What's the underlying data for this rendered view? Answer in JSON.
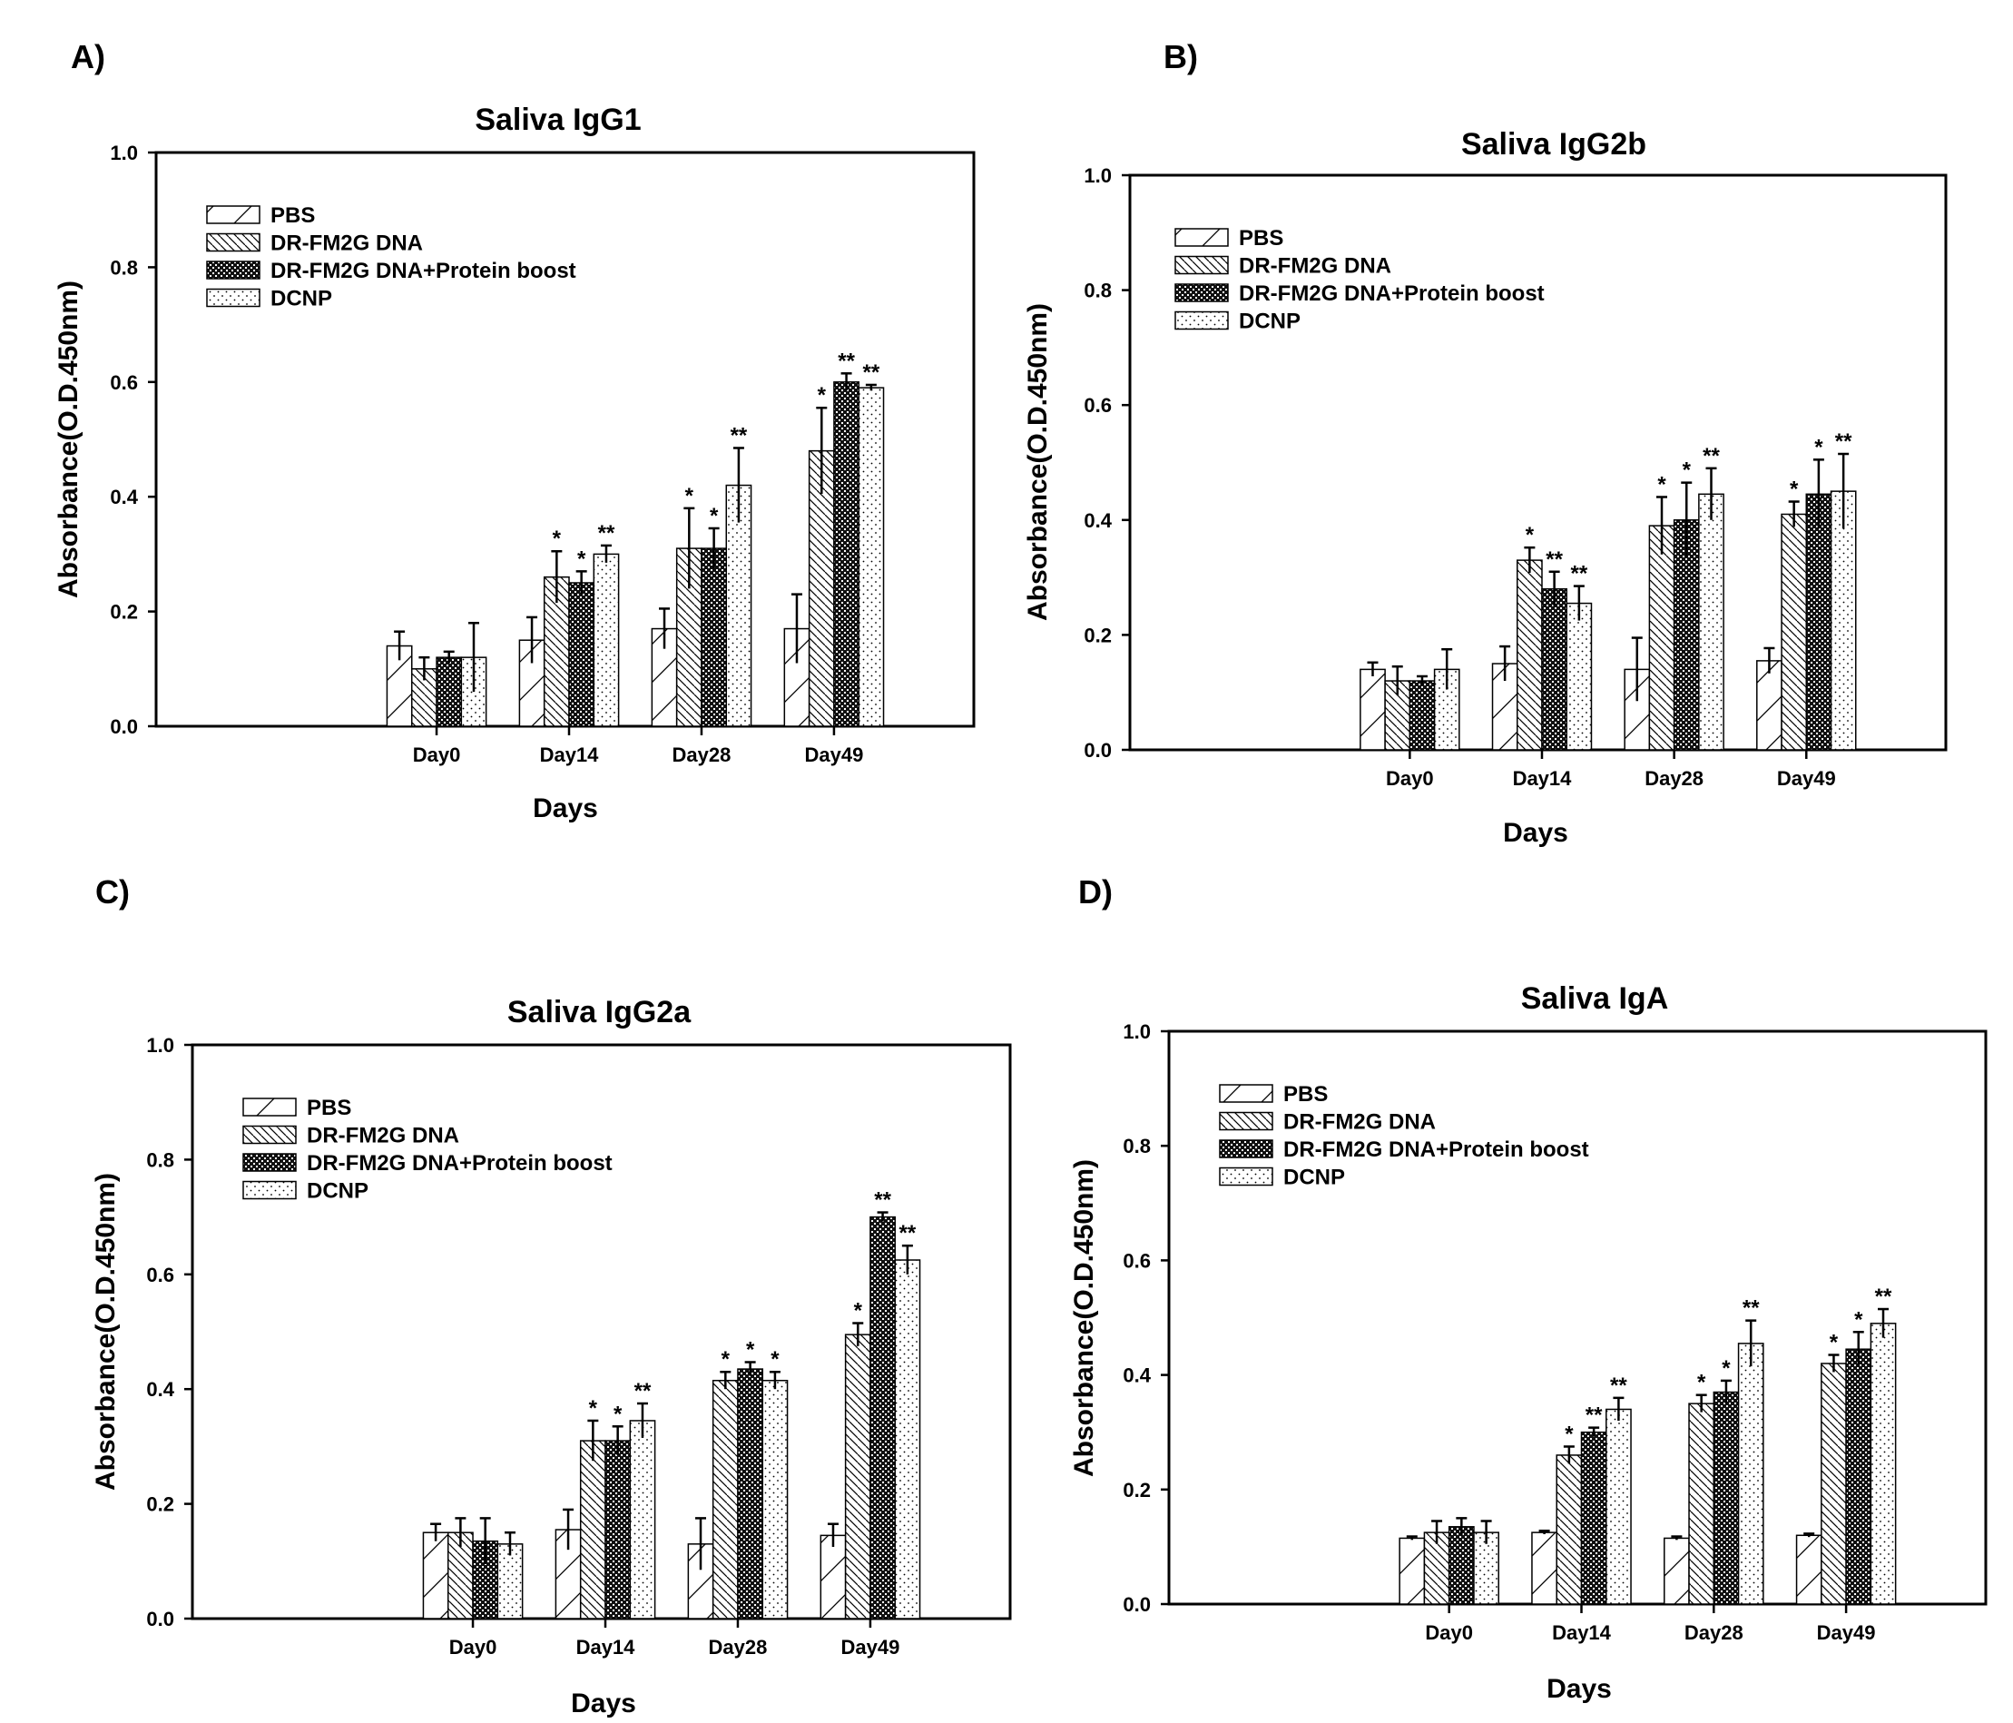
{
  "chart_data": [
    {
      "panel": "A)",
      "type": "bar",
      "title": "Saliva IgG1",
      "xlabel": "Days",
      "ylabel": "Absorbance(O.D.450nm)",
      "ylim": [
        0,
        1.0
      ],
      "yticks": [
        "0.0",
        "0.2",
        "0.4",
        "0.6",
        "0.8",
        "1.0"
      ],
      "categories": [
        "Day0",
        "Day14",
        "Day28",
        "Day49"
      ],
      "legend_position": "top-left",
      "series": [
        {
          "name": "PBS",
          "values": [
            0.14,
            0.15,
            0.17,
            0.17
          ],
          "errors": [
            0.025,
            0.04,
            0.035,
            0.06
          ],
          "sig": [
            "",
            "",
            "",
            ""
          ]
        },
        {
          "name": "DR-FM2G DNA",
          "values": [
            0.1,
            0.26,
            0.31,
            0.48
          ],
          "errors": [
            0.02,
            0.045,
            0.07,
            0.075
          ],
          "sig": [
            "",
            "*",
            "*",
            "*"
          ]
        },
        {
          "name": "DR-FM2G DNA+Protein boost",
          "values": [
            0.12,
            0.25,
            0.31,
            0.6
          ],
          "errors": [
            0.01,
            0.02,
            0.035,
            0.015
          ],
          "sig": [
            "",
            "*",
            "*",
            "**"
          ]
        },
        {
          "name": "DCNP",
          "values": [
            0.12,
            0.3,
            0.42,
            0.59
          ],
          "errors": [
            0.06,
            0.015,
            0.065,
            0.005
          ],
          "sig": [
            "",
            "**",
            "**",
            "**"
          ]
        }
      ]
    },
    {
      "panel": "B)",
      "type": "bar",
      "title": "Saliva IgG2b",
      "xlabel": "Days",
      "ylabel": "Absorbance(O.D.450nm)",
      "ylim": [
        0,
        1.0
      ],
      "yticks": [
        "0.0",
        "0.2",
        "0.4",
        "0.6",
        "0.8",
        "1.0"
      ],
      "categories": [
        "Day0",
        "Day14",
        "Day28",
        "Day49"
      ],
      "legend_position": "top-left",
      "series": [
        {
          "name": "PBS",
          "values": [
            0.14,
            0.15,
            0.14,
            0.155
          ],
          "errors": [
            0.012,
            0.03,
            0.055,
            0.022
          ],
          "sig": [
            "",
            "",
            "",
            ""
          ]
        },
        {
          "name": "DR-FM2G DNA",
          "values": [
            0.12,
            0.33,
            0.39,
            0.41
          ],
          "errors": [
            0.025,
            0.022,
            0.05,
            0.022
          ],
          "sig": [
            "",
            "*",
            "*",
            "*"
          ]
        },
        {
          "name": "DR-FM2G DNA+Protein boost",
          "values": [
            0.12,
            0.28,
            0.4,
            0.445
          ],
          "errors": [
            0.008,
            0.03,
            0.065,
            0.06
          ],
          "sig": [
            "",
            "**",
            "*",
            "*"
          ]
        },
        {
          "name": "DCNP",
          "values": [
            0.14,
            0.255,
            0.445,
            0.45
          ],
          "errors": [
            0.035,
            0.03,
            0.045,
            0.065
          ],
          "sig": [
            "",
            "**",
            "**",
            "**"
          ]
        }
      ]
    },
    {
      "panel": "C)",
      "type": "bar",
      "title": "Saliva IgG2a",
      "xlabel": "Days",
      "ylabel": "Absorbance(O.D.450nm)",
      "ylim": [
        0,
        1.0
      ],
      "yticks": [
        "0.0",
        "0.2",
        "0.4",
        "0.6",
        "0.8",
        "1.0"
      ],
      "categories": [
        "Day0",
        "Day14",
        "Day28",
        "Day49"
      ],
      "legend_position": "top-left",
      "series": [
        {
          "name": "PBS",
          "values": [
            0.15,
            0.155,
            0.13,
            0.145
          ],
          "errors": [
            0.015,
            0.035,
            0.045,
            0.02
          ],
          "sig": [
            "",
            "",
            "",
            ""
          ]
        },
        {
          "name": "DR-FM2G DNA",
          "values": [
            0.15,
            0.31,
            0.415,
            0.495
          ],
          "errors": [
            0.025,
            0.035,
            0.015,
            0.02
          ],
          "sig": [
            "",
            "*",
            "*",
            "*"
          ]
        },
        {
          "name": "DR-FM2G DNA+Protein boost",
          "values": [
            0.135,
            0.31,
            0.435,
            0.7
          ],
          "errors": [
            0.04,
            0.025,
            0.012,
            0.008
          ],
          "sig": [
            "",
            "*",
            "*",
            "**"
          ]
        },
        {
          "name": "DCNP",
          "values": [
            0.13,
            0.345,
            0.415,
            0.625
          ],
          "errors": [
            0.02,
            0.03,
            0.015,
            0.025
          ],
          "sig": [
            "",
            "**",
            "*",
            "**"
          ]
        }
      ]
    },
    {
      "panel": "D)",
      "type": "bar",
      "title": "Saliva IgA",
      "xlabel": "Days",
      "ylabel": "Absorbance(O.D.450nm)",
      "ylim": [
        0,
        1.0
      ],
      "yticks": [
        "0.0",
        "0.2",
        "0.4",
        "0.6",
        "0.8",
        "1.0"
      ],
      "categories": [
        "Day0",
        "Day14",
        "Day28",
        "Day49"
      ],
      "legend_position": "top-left",
      "series": [
        {
          "name": "PBS",
          "values": [
            0.115,
            0.125,
            0.115,
            0.12
          ],
          "errors": [
            0.003,
            0.003,
            0.003,
            0.003
          ],
          "sig": [
            "",
            "",
            "",
            ""
          ]
        },
        {
          "name": "DR-FM2G DNA",
          "values": [
            0.125,
            0.26,
            0.35,
            0.42
          ],
          "errors": [
            0.02,
            0.015,
            0.015,
            0.015
          ],
          "sig": [
            "",
            "*",
            "*",
            "*"
          ]
        },
        {
          "name": "DR-FM2G DNA+Protein boost",
          "values": [
            0.135,
            0.3,
            0.37,
            0.445
          ],
          "errors": [
            0.015,
            0.008,
            0.02,
            0.03
          ],
          "sig": [
            "",
            "**",
            "*",
            "*"
          ]
        },
        {
          "name": "DCNP",
          "values": [
            0.125,
            0.34,
            0.455,
            0.49
          ],
          "errors": [
            0.02,
            0.02,
            0.04,
            0.025
          ],
          "sig": [
            "",
            "**",
            "**",
            "**"
          ]
        }
      ]
    }
  ]
}
